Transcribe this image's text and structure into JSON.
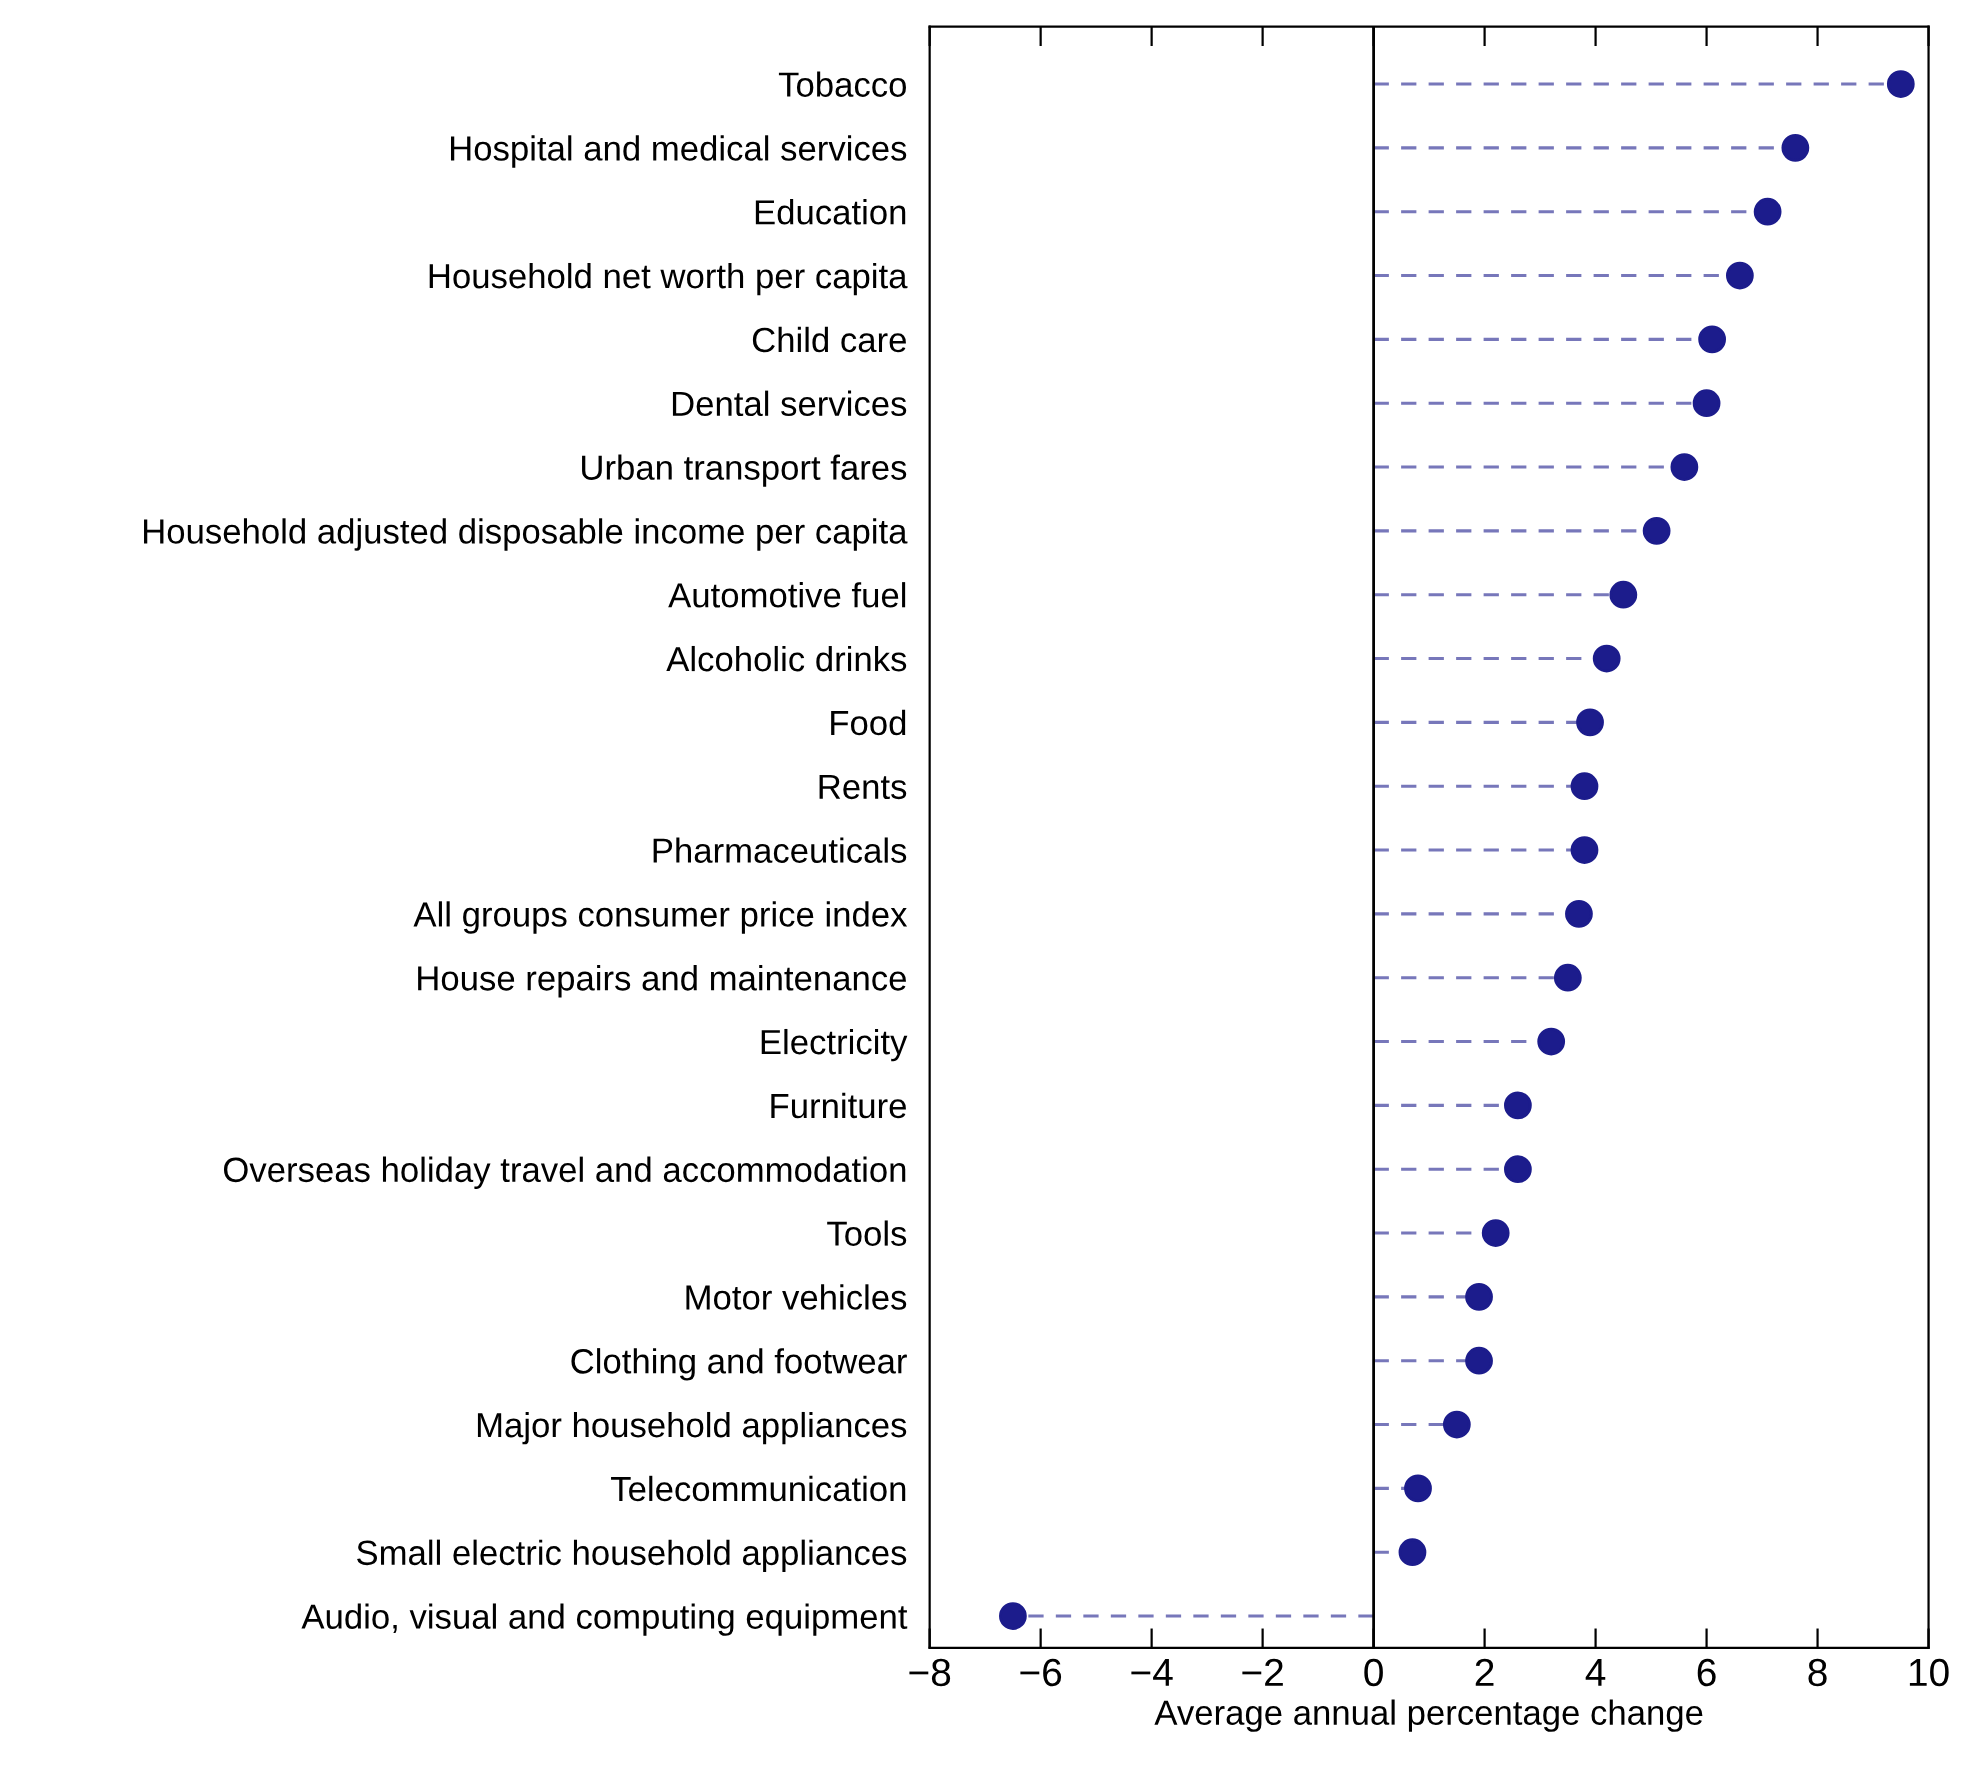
{
  "chart_data": {
    "type": "lollipop",
    "orientation": "horizontal",
    "xlabel": "Average annual percentage change",
    "categories": [
      "Tobacco",
      "Hospital and medical services",
      "Education",
      "Household net worth per capita",
      "Child care",
      "Dental services",
      "Urban transport fares",
      "Household adjusted disposable income per capita",
      "Automotive fuel",
      "Alcoholic drinks",
      "Food",
      "Rents",
      "Pharmaceuticals",
      "All groups consumer price index",
      "House repairs and maintenance",
      "Electricity",
      "Furniture",
      "Overseas holiday travel and accommodation",
      "Tools",
      "Motor vehicles",
      "Clothing and footwear",
      "Major household appliances",
      "Telecommunication",
      "Small electric household appliances",
      "Audio, visual and computing equipment"
    ],
    "series": [
      {
        "color": "#1c1c8c",
        "values": [
          9.5,
          7.6,
          7.1,
          6.6,
          6.1,
          6.0,
          5.6,
          5.1,
          4.5,
          4.2,
          3.9,
          3.8,
          3.8,
          3.7,
          3.5,
          3.2,
          2.6,
          2.6,
          2.2,
          1.9,
          1.9,
          1.5,
          0.8,
          0.7,
          -6.5
        ]
      }
    ],
    "xlim": [
      -8,
      10
    ],
    "xticks": [
      {
        "value": -8,
        "label": "−8"
      },
      {
        "value": -6,
        "label": "−6"
      },
      {
        "value": -4,
        "label": "−4"
      },
      {
        "value": -2,
        "label": "−2"
      },
      0,
      2,
      4,
      6,
      8,
      10
    ],
    "ref_lines": [
      {
        "axis": "x",
        "value": 0,
        "color": "#000000"
      }
    ],
    "marker": "circle",
    "line_style": "dashed",
    "grid": false,
    "legend": false
  }
}
